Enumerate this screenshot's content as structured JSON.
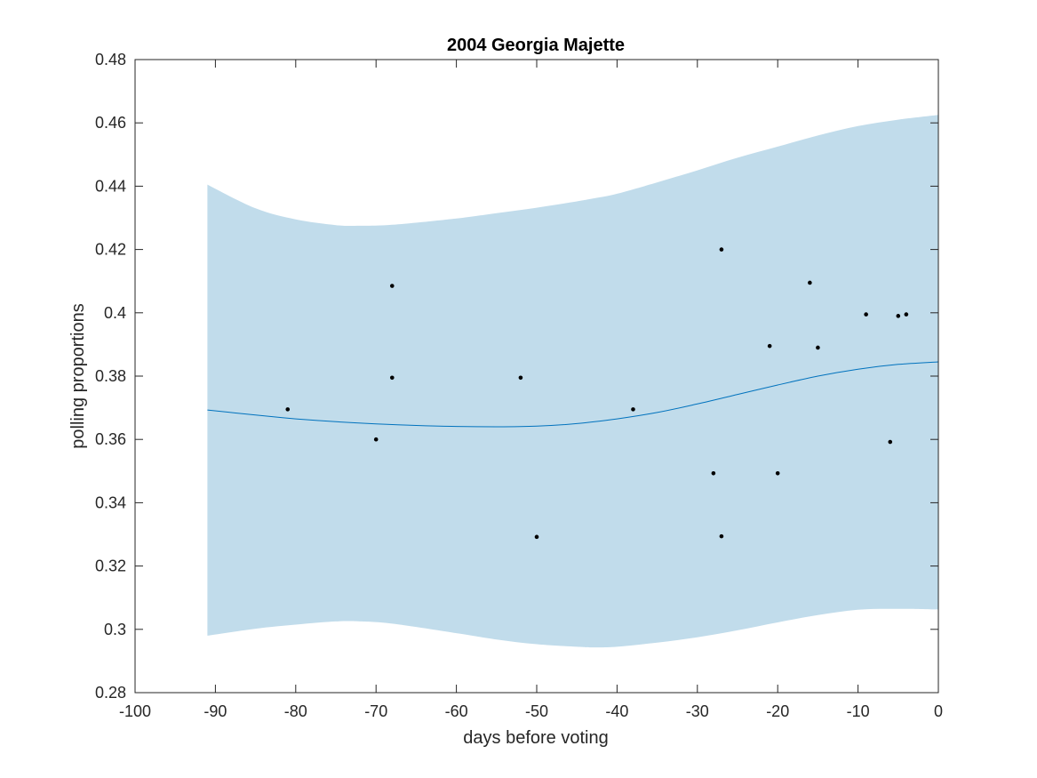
{
  "chart_data": {
    "type": "line",
    "title": "2004 Georgia Majette",
    "xlabel": "days before voting",
    "ylabel": "polling proportions",
    "xlim": [
      -100,
      0
    ],
    "ylim": [
      0.28,
      0.48
    ],
    "xticks": [
      "-100",
      "-90",
      "-80",
      "-70",
      "-60",
      "-50",
      "-40",
      "-30",
      "-20",
      "-10",
      "0"
    ],
    "yticks": [
      "0.28",
      "0.3",
      "0.32",
      "0.34",
      "0.36",
      "0.38",
      "0.4",
      "0.42",
      "0.44",
      "0.46",
      "0.48"
    ],
    "grid": false,
    "colors": {
      "band": "#c1dceb",
      "line": "#0072bd",
      "points": "#000000"
    },
    "band": {
      "x": [
        -91,
        -85,
        -80,
        -75,
        -72,
        -68,
        -60,
        -55,
        -50,
        -45,
        -43,
        -40,
        -35,
        -30,
        -25,
        -20,
        -15,
        -10,
        -5,
        0
      ],
      "upper": [
        0.4405,
        0.433,
        0.4295,
        0.4277,
        0.4275,
        0.4278,
        0.4298,
        0.4315,
        0.4332,
        0.4352,
        0.4361,
        0.4376,
        0.4412,
        0.445,
        0.449,
        0.4525,
        0.456,
        0.459,
        0.461,
        0.4625
      ],
      "lower": [
        0.298,
        0.3002,
        0.3015,
        0.3025,
        0.3025,
        0.3018,
        0.2988,
        0.2968,
        0.2953,
        0.2945,
        0.2943,
        0.2945,
        0.2958,
        0.2975,
        0.2997,
        0.3022,
        0.3045,
        0.3062,
        0.3065,
        0.3063
      ]
    },
    "series": [
      {
        "x": [
          -91,
          -85,
          -80,
          -75,
          -70,
          -65,
          -60,
          -55,
          -50,
          -45,
          -40,
          -35,
          -30,
          -25,
          -20,
          -15,
          -10,
          -5,
          0
        ],
        "y": [
          0.3693,
          0.3677,
          0.3665,
          0.3656,
          0.3649,
          0.3644,
          0.3641,
          0.364,
          0.3642,
          0.365,
          0.3665,
          0.3685,
          0.3712,
          0.3742,
          0.3772,
          0.38,
          0.3822,
          0.3837,
          0.3845
        ]
      }
    ],
    "points": {
      "x": [
        -81,
        -70,
        -68,
        -68,
        -52,
        -50,
        -38,
        -28,
        -27,
        -27,
        -21,
        -20,
        -16,
        -15,
        -9,
        -6,
        -5,
        -4
      ],
      "y": [
        0.3695,
        0.36,
        0.4085,
        0.3795,
        0.3795,
        0.3292,
        0.3695,
        0.3493,
        0.42,
        0.3294,
        0.3895,
        0.3493,
        0.4095,
        0.389,
        0.3995,
        0.3592,
        0.399,
        0.3995
      ]
    }
  }
}
